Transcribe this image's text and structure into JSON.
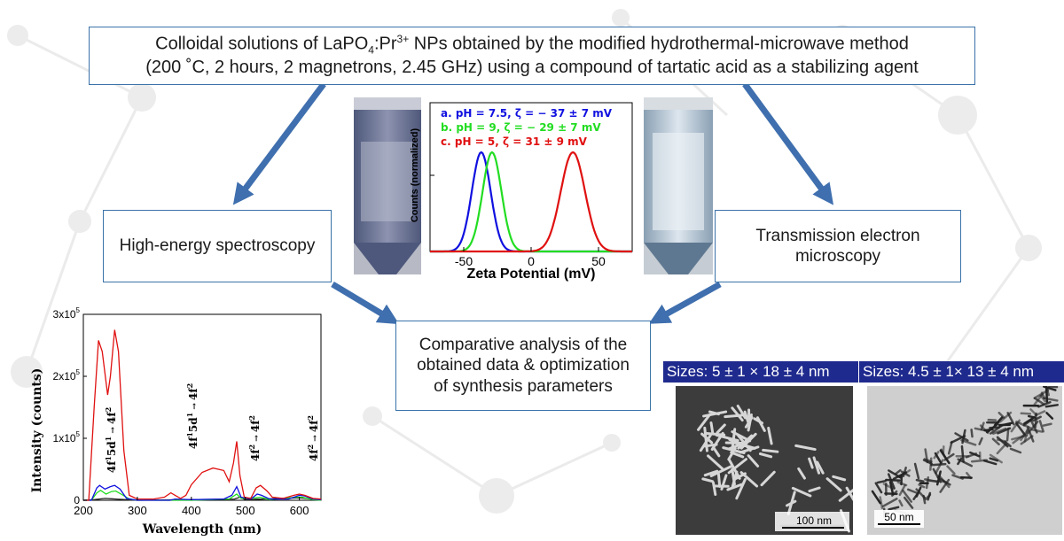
{
  "main_box": {
    "line1_pre": "Colloidal solutions of LaPO",
    "line1_sub": "4",
    "line1_mid": ":Pr",
    "line1_sup": "3+",
    "line1_post": " NPs obtained by the modified hydrothermal-microwave method",
    "line2": "(200 ˚C, 2 hours, 2 magnetrons, 2.45 GHz) using a compound of tartatic acid as a stabilizing agent"
  },
  "left_box": {
    "label": "High-energy spectroscopy"
  },
  "right_box": {
    "line1": "Transmission electron",
    "line2": "microscopy"
  },
  "center_box": {
    "line1": "Comparative analysis of the",
    "line2": "obtained data & optimization",
    "line3": "of synthesis parameters"
  },
  "tem_panels": {
    "left": {
      "size_label": "Sizes: 5 ± 1 × 18 ± 4 nm",
      "scale_bar": "100 nm"
    },
    "right": {
      "size_label": "Sizes: 4.5 ± 1× 13 ± 4 nm",
      "scale_bar": "50 nm"
    }
  },
  "colors": {
    "box_border": "#3a72a8",
    "arrow": "#3f6fae",
    "label_bar": "#1f2a8e",
    "series_a": "#1010e0",
    "series_b": "#22dd22",
    "series_c": "#e01010"
  },
  "chart_data": [
    {
      "type": "line",
      "xlabel": "Zeta Potential (mV)",
      "ylabel": "Counts (normalized)",
      "xlim": [
        -75,
        75
      ],
      "xticks": [
        "-50",
        "0",
        "50"
      ],
      "series": [
        {
          "name": "a. pH = 7.5, ζ = − 37 ± 7 mV",
          "color": "#1010e0",
          "mean": -37,
          "sd": 7
        },
        {
          "name": "b. pH = 9, ζ = − 29 ± 7 mV",
          "color": "#22dd22",
          "mean": -29,
          "sd": 7
        },
        {
          "name": "c. pH = 5, ζ = 31 ± 9 mV",
          "color": "#e01010",
          "mean": 31,
          "sd": 9
        }
      ]
    },
    {
      "type": "line",
      "xlabel": "Wavelength (nm)",
      "ylabel": "Intensity (counts)",
      "xlim": [
        200,
        640
      ],
      "ylim": [
        0,
        300000
      ],
      "xticks": [
        "200",
        "300",
        "400",
        "500",
        "600"
      ],
      "yticks": [
        "0",
        "1x10",
        "2x10",
        "3x10"
      ],
      "ytick_exponent": "5",
      "annotations": [
        {
          "base": "4f",
          "sup1": "1",
          "mid": "5d",
          "sup2": "1",
          "arrow": " → ",
          "end": "4f",
          "sup3": "2"
        },
        {
          "base": "4f",
          "sup1": "1",
          "mid": "5d",
          "sup2": "1",
          "arrow": " → ",
          "end": "4f",
          "sup3": "2"
        },
        {
          "base": "4f",
          "sup1": "2",
          "arrow": " → ",
          "end": "4f",
          "sup3": "2"
        },
        {
          "base": "4f",
          "sup1": "2",
          "arrow": " → ",
          "end": "4f",
          "sup3": "2"
        }
      ],
      "series": [
        {
          "color": "#e01010",
          "points": [
            [
              200,
              0
            ],
            [
              210,
              0
            ],
            [
              220,
              150000
            ],
            [
              228,
              258000
            ],
            [
              235,
              240000
            ],
            [
              245,
              170000
            ],
            [
              250,
              200000
            ],
            [
              258,
              275000
            ],
            [
              265,
              240000
            ],
            [
              275,
              80000
            ],
            [
              285,
              8000
            ],
            [
              300,
              2000
            ],
            [
              330,
              2000
            ],
            [
              350,
              5000
            ],
            [
              362,
              12000
            ],
            [
              370,
              8000
            ],
            [
              380,
              3000
            ],
            [
              390,
              8000
            ],
            [
              400,
              25000
            ],
            [
              420,
              45000
            ],
            [
              440,
              52000
            ],
            [
              460,
              48000
            ],
            [
              470,
              30000
            ],
            [
              478,
              60000
            ],
            [
              484,
              95000
            ],
            [
              490,
              40000
            ],
            [
              498,
              5000
            ],
            [
              510,
              3000
            ],
            [
              520,
              20000
            ],
            [
              528,
              24000
            ],
            [
              540,
              15000
            ],
            [
              550,
              5000
            ],
            [
              570,
              3000
            ],
            [
              590,
              8000
            ],
            [
              600,
              10000
            ],
            [
              610,
              8000
            ],
            [
              625,
              3000
            ],
            [
              640,
              2000
            ]
          ]
        },
        {
          "color": "#1010e0",
          "points": [
            [
              200,
              0
            ],
            [
              215,
              0
            ],
            [
              225,
              20000
            ],
            [
              230,
              24000
            ],
            [
              240,
              18000
            ],
            [
              250,
              22000
            ],
            [
              258,
              24000
            ],
            [
              268,
              18000
            ],
            [
              280,
              3000
            ],
            [
              300,
              0
            ],
            [
              360,
              0
            ],
            [
              370,
              2000
            ],
            [
              400,
              1000
            ],
            [
              460,
              2000
            ],
            [
              475,
              8000
            ],
            [
              484,
              22000
            ],
            [
              492,
              5000
            ],
            [
              510,
              2000
            ],
            [
              522,
              10000
            ],
            [
              530,
              8000
            ],
            [
              545,
              2000
            ],
            [
              580,
              2000
            ],
            [
              600,
              8000
            ],
            [
              610,
              7000
            ],
            [
              625,
              2000
            ],
            [
              640,
              1000
            ]
          ]
        },
        {
          "color": "#22dd22",
          "points": [
            [
              200,
              0
            ],
            [
              215,
              0
            ],
            [
              225,
              12000
            ],
            [
              232,
              16000
            ],
            [
              242,
              10000
            ],
            [
              252,
              14000
            ],
            [
              260,
              15000
            ],
            [
              270,
              10000
            ],
            [
              285,
              2000
            ],
            [
              300,
              0
            ],
            [
              400,
              0
            ],
            [
              470,
              2000
            ],
            [
              484,
              10000
            ],
            [
              492,
              3000
            ],
            [
              520,
              4000
            ],
            [
              528,
              5000
            ],
            [
              545,
              1000
            ],
            [
              595,
              5000
            ],
            [
              605,
              5000
            ],
            [
              625,
              1000
            ],
            [
              640,
              0
            ]
          ]
        },
        {
          "color": "#222222",
          "points": [
            [
              200,
              0
            ],
            [
              220,
              1000
            ],
            [
              240,
              3000
            ],
            [
              260,
              2000
            ],
            [
              300,
              0
            ],
            [
              480,
              2000
            ],
            [
              490,
              5000
            ],
            [
              500,
              1000
            ],
            [
              600,
              4000
            ],
            [
              640,
              1000
            ]
          ]
        }
      ]
    }
  ]
}
